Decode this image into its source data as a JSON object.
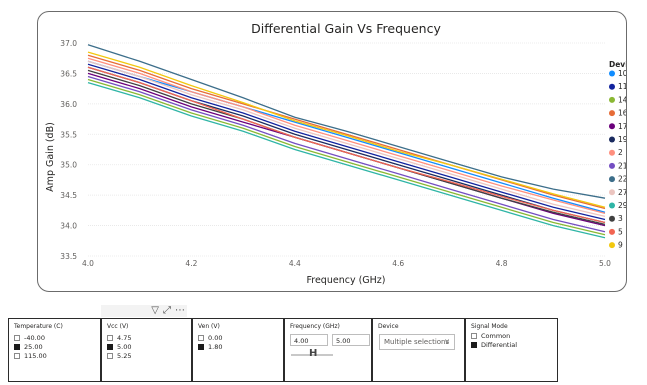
{
  "chart_data": {
    "type": "line",
    "title": "Differential Gain Vs Frequency",
    "xlabel": "Frequency (GHz)",
    "ylabel": "Amp Gain (dB)",
    "xlim": [
      4.0,
      5.0
    ],
    "ylim": [
      33.5,
      37.0
    ],
    "x_ticks": [
      "4.0",
      "4.2",
      "4.4",
      "4.6",
      "4.8",
      "5.0"
    ],
    "y_ticks": [
      "33.5",
      "34.0",
      "34.5",
      "35.0",
      "35.5",
      "36.0",
      "36.5",
      "37.0"
    ],
    "legend_title": "Device",
    "legend_position": "right",
    "x": [
      4.0,
      4.1,
      4.2,
      4.3,
      4.4,
      4.5,
      4.6,
      4.7,
      4.8,
      4.9,
      5.0
    ],
    "series": [
      {
        "name": "10",
        "color": "#118dff",
        "values": [
          36.7,
          36.45,
          36.2,
          35.95,
          35.7,
          35.45,
          35.2,
          34.95,
          34.7,
          34.45,
          34.22
        ]
      },
      {
        "name": "11",
        "color": "#12239e",
        "values": [
          36.65,
          36.4,
          36.1,
          35.85,
          35.55,
          35.3,
          35.05,
          34.8,
          34.55,
          34.3,
          34.1
        ]
      },
      {
        "name": "14",
        "color": "#8ab833",
        "values": [
          36.4,
          36.15,
          35.85,
          35.6,
          35.3,
          35.05,
          34.8,
          34.55,
          34.3,
          34.05,
          33.85
        ]
      },
      {
        "name": "16",
        "color": "#e66c37",
        "values": [
          36.8,
          36.55,
          36.25,
          36.0,
          35.75,
          35.5,
          35.25,
          35.0,
          34.75,
          34.5,
          34.28
        ]
      },
      {
        "name": "17",
        "color": "#6b007b",
        "values": [
          36.5,
          36.25,
          35.95,
          35.7,
          35.45,
          35.2,
          34.95,
          34.7,
          34.45,
          34.2,
          34.0
        ]
      },
      {
        "name": "19",
        "color": "#1a2b5f",
        "values": [
          36.6,
          36.35,
          36.05,
          35.8,
          35.5,
          35.25,
          35.0,
          34.75,
          34.5,
          34.25,
          34.05
        ]
      },
      {
        "name": "2",
        "color": "#ff8f7e",
        "values": [
          36.75,
          36.5,
          36.2,
          35.95,
          35.65,
          35.4,
          35.15,
          34.9,
          34.65,
          34.42,
          34.2
        ]
      },
      {
        "name": "21",
        "color": "#744ec2",
        "values": [
          36.45,
          36.2,
          35.9,
          35.65,
          35.35,
          35.1,
          34.85,
          34.6,
          34.35,
          34.1,
          33.9
        ]
      },
      {
        "name": "22",
        "color": "#3c6e8a",
        "values": [
          36.97,
          36.7,
          36.4,
          36.1,
          35.78,
          35.55,
          35.3,
          35.05,
          34.8,
          34.6,
          34.45
        ]
      },
      {
        "name": "27",
        "color": "#ecc5c0",
        "values": [
          36.7,
          36.45,
          36.15,
          35.9,
          35.6,
          35.35,
          35.1,
          34.85,
          34.6,
          34.35,
          34.15
        ]
      },
      {
        "name": "29",
        "color": "#2fb5a6",
        "values": [
          36.35,
          36.1,
          35.8,
          35.55,
          35.25,
          35.0,
          34.75,
          34.5,
          34.25,
          34.0,
          33.8
        ]
      },
      {
        "name": "3",
        "color": "#404040",
        "values": [
          36.55,
          36.3,
          36.0,
          35.75,
          35.45,
          35.2,
          34.95,
          34.7,
          34.45,
          34.22,
          34.02
        ]
      },
      {
        "name": "5",
        "color": "#f26552",
        "values": [
          36.6,
          36.35,
          36.05,
          35.75,
          35.45,
          35.2,
          34.95,
          34.72,
          34.48,
          34.25,
          34.05
        ]
      },
      {
        "name": "9",
        "color": "#f2c80f",
        "values": [
          36.85,
          36.6,
          36.3,
          36.02,
          35.72,
          35.48,
          35.22,
          35.0,
          34.76,
          34.52,
          34.3
        ]
      }
    ]
  },
  "slicers": {
    "temperature": {
      "title": "Temperature (C)",
      "options": [
        {
          "label": "-40.00",
          "checked": false
        },
        {
          "label": "25.00",
          "checked": true
        },
        {
          "label": "115.00",
          "checked": false
        }
      ]
    },
    "vcc": {
      "title": "Vcc (V)",
      "options": [
        {
          "label": "4.75",
          "checked": false
        },
        {
          "label": "5.00",
          "checked": true
        },
        {
          "label": "5.25",
          "checked": false
        }
      ]
    },
    "ven": {
      "title": "Ven (V)",
      "options": [
        {
          "label": "0.00",
          "checked": false
        },
        {
          "label": "1.80",
          "checked": true
        }
      ]
    },
    "frequency": {
      "title": "Frequency (GHz)",
      "min": "4.00",
      "max": "5.00"
    },
    "device": {
      "title": "Device",
      "value": "Multiple selections"
    },
    "signal_mode": {
      "title": "Signal Mode",
      "options": [
        {
          "label": "Common",
          "checked": false
        },
        {
          "label": "Differential",
          "checked": true
        }
      ]
    }
  },
  "visual_header": {
    "icons": [
      "filter-icon",
      "focus-mode-icon",
      "more-options-icon"
    ]
  }
}
